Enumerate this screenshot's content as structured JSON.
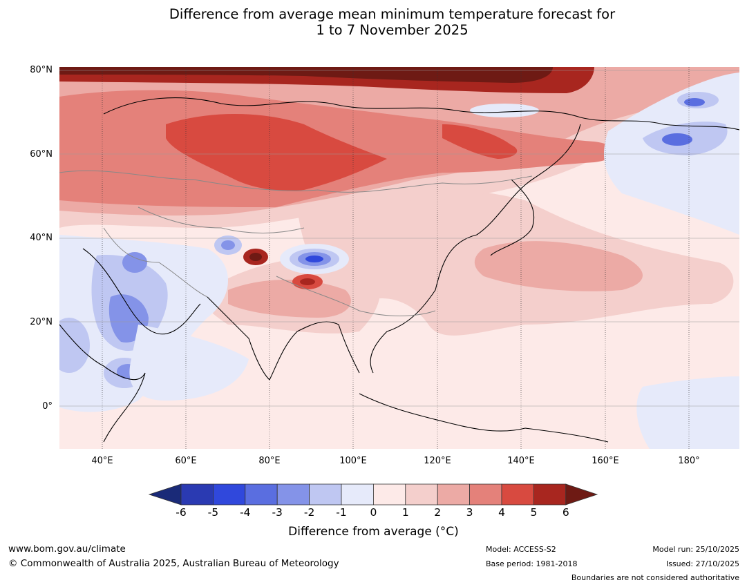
{
  "title": {
    "line1": "Difference from average mean minimum temperature forecast for",
    "line2": "1 to 7 November 2025"
  },
  "map": {
    "region": "Asia",
    "lat_labels": [
      "80°N",
      "60°N",
      "40°N",
      "20°N",
      "0°"
    ],
    "lon_labels": [
      "40°E",
      "60°E",
      "80°E",
      "100°E",
      "120°E",
      "140°E",
      "160°E",
      "180°"
    ]
  },
  "colorbar": {
    "ticks": [
      "-6",
      "-5",
      "-4",
      "-3",
      "-2",
      "-1",
      "0",
      "1",
      "2",
      "3",
      "4",
      "5",
      "6"
    ],
    "label": "Difference from average (°C)",
    "colors": {
      "below": "#1a2a78",
      "n6_5": "#2a3ab2",
      "n5_4": "#3048dc",
      "n4_3": "#5a6ee0",
      "n3_2": "#8493e8",
      "n2_1": "#bfc7f2",
      "n1_0": "#e6eafa",
      "p0_1": "#fdeae8",
      "p1_2": "#f4cfcc",
      "p2_3": "#ecaaa5",
      "p3_4": "#e4817a",
      "p4_5": "#d84a40",
      "p5_6": "#a8261f",
      "above": "#6e1a14"
    }
  },
  "footer": {
    "website": "www.bom.gov.au/climate",
    "copyright": "© Commonwealth of Australia 2025, Australian Bureau of Meteorology",
    "model": "Model: ACCESS-S2",
    "base_period": "Base period: 1981-2018",
    "model_run": "Model run: 25/10/2025",
    "issued": "Issued: 27/10/2025",
    "disclaimer": "Boundaries are not considered authoritative"
  }
}
